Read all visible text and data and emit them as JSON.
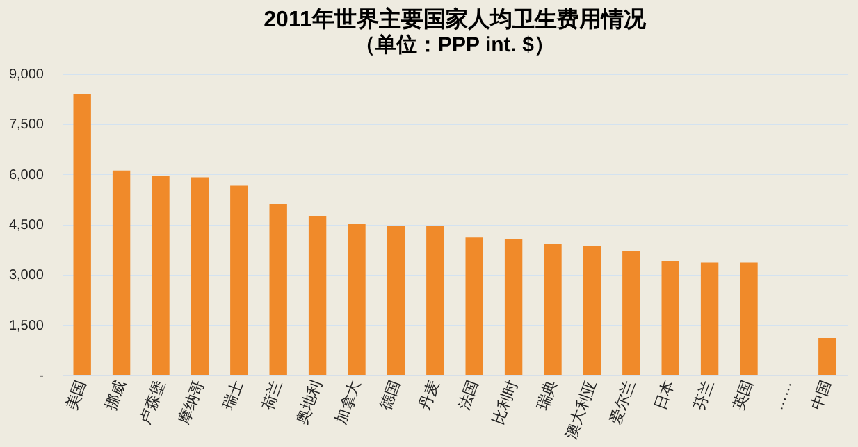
{
  "chart_data": {
    "type": "bar",
    "title": "2011年世界主要国家人均卫生费用情况",
    "subtitle": "（单位：PPP int. $）",
    "categories": [
      "美国",
      "挪威",
      "卢森堡",
      "摩纳哥",
      "瑞士",
      "荷兰",
      "奥地利",
      "加拿大",
      "德国",
      "丹麦",
      "法国",
      "比利时",
      "瑞典",
      "澳大利亚",
      "爱尔兰",
      "日本",
      "芬兰",
      "英国",
      "……",
      "中国"
    ],
    "values": [
      8400,
      6100,
      5950,
      5900,
      5650,
      5100,
      4750,
      4500,
      4450,
      4450,
      4100,
      4050,
      3900,
      3850,
      3700,
      3400,
      3350,
      3350,
      null,
      1100
    ],
    "color": "#f08a2a",
    "ylim": [
      0,
      9000
    ],
    "yticks": [
      {
        "value": 0,
        "label": "-"
      },
      {
        "value": 1500,
        "label": "1,500"
      },
      {
        "value": 3000,
        "label": "3,000"
      },
      {
        "value": 4500,
        "label": "4,500"
      },
      {
        "value": 6000,
        "label": "6,000"
      },
      {
        "value": 7500,
        "label": "7,500"
      },
      {
        "value": 9000,
        "label": "9,000"
      }
    ],
    "grid": "y"
  }
}
